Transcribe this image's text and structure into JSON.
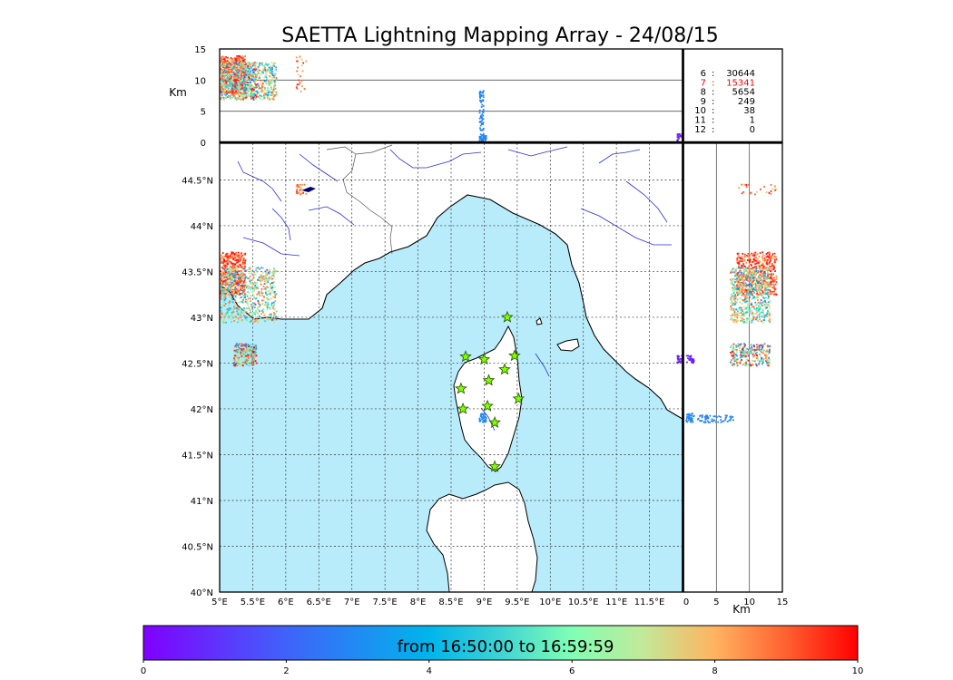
{
  "title": "SAETTA Lightning Mapping Array - 24/08/15",
  "colors": {
    "sea": "#b8ecfb",
    "coast": "#000000",
    "river": "#2b2bd8",
    "border": "#555555",
    "station_fill": "#7fff00",
    "station_stroke": "#2f5d00",
    "highlight": "#ff0000"
  },
  "time_range_label": "from 16:50:00 to 16:59:59",
  "altitude_unit": "Km",
  "station_counts": [
    {
      "label": "6",
      "count": "30644",
      "highlight": false
    },
    {
      "label": "7",
      "count": "15341",
      "highlight": true
    },
    {
      "label": "8",
      "count": "5654",
      "highlight": false
    },
    {
      "label": "9",
      "count": "249",
      "highlight": false
    },
    {
      "label": "10",
      "count": "38",
      "highlight": false
    },
    {
      "label": "11",
      "count": "1",
      "highlight": false
    },
    {
      "label": "12",
      "count": "0",
      "highlight": false
    }
  ],
  "chart_data": [
    {
      "type": "scatter",
      "panel": "map",
      "xlim": [
        5.0,
        12.0
      ],
      "ylim": [
        40.0,
        44.9
      ],
      "x_ticks": [
        "5°E",
        "5.5°E",
        "6°E",
        "6.5°E",
        "7°E",
        "7.5°E",
        "8°E",
        "8.5°E",
        "9°E",
        "9.5°E",
        "10°E",
        "10.5°E",
        "11°E",
        "11.5°E"
      ],
      "y_ticks": [
        "40°N",
        "40.5°N",
        "41°N",
        "41.5°N",
        "42°N",
        "42.5°N",
        "43°N",
        "43.5°N",
        "44°N",
        "44.5°N"
      ],
      "grid": true,
      "stations": [
        {
          "lon": 9.35,
          "lat": 43.0
        },
        {
          "lon": 8.72,
          "lat": 42.57
        },
        {
          "lon": 9.0,
          "lat": 42.54
        },
        {
          "lon": 9.46,
          "lat": 42.58
        },
        {
          "lon": 9.31,
          "lat": 42.43
        },
        {
          "lon": 9.07,
          "lat": 42.31
        },
        {
          "lon": 8.65,
          "lat": 42.22
        },
        {
          "lon": 9.52,
          "lat": 42.11
        },
        {
          "lon": 9.05,
          "lat": 42.03
        },
        {
          "lon": 8.68,
          "lat": 42.0
        },
        {
          "lon": 9.16,
          "lat": 41.85
        },
        {
          "lon": 9.16,
          "lat": 41.37
        }
      ],
      "sources": [
        {
          "lon_min": 5.0,
          "lon_max": 5.38,
          "lat_min": 43.25,
          "lat_max": 43.72,
          "time_min": 7.5,
          "time_max": 10,
          "count": 480
        },
        {
          "lon_min": 5.0,
          "lon_max": 5.85,
          "lat_min": 42.95,
          "lat_max": 43.55,
          "time_min": 2,
          "time_max": 9,
          "count": 620
        },
        {
          "lon_min": 5.2,
          "lon_max": 5.55,
          "lat_min": 42.48,
          "lat_max": 42.72,
          "time_min": 1,
          "time_max": 10,
          "count": 260
        },
        {
          "lon_min": 6.15,
          "lon_max": 6.3,
          "lat_min": 44.35,
          "lat_max": 44.46,
          "time_min": 7,
          "time_max": 10,
          "count": 25
        },
        {
          "lon_min": 8.92,
          "lon_max": 9.02,
          "lat_min": 41.86,
          "lat_max": 41.96,
          "time_min": 2.5,
          "time_max": 3.2,
          "count": 40
        },
        {
          "lon_min": 11.9,
          "lon_max": 12.0,
          "lat_min": 42.51,
          "lat_max": 42.59,
          "time_min": 0.3,
          "time_max": 0.8,
          "count": 30
        }
      ]
    },
    {
      "type": "scatter",
      "panel": "altitude-vs-longitude",
      "xlim": [
        5.0,
        12.0
      ],
      "ylim": [
        0,
        15
      ],
      "ylabel": "Km",
      "y_ticks": [
        "0",
        "5",
        "10",
        "15"
      ],
      "gridlines_y": [
        5,
        10
      ]
    },
    {
      "type": "scatter",
      "panel": "latitude-vs-altitude",
      "xlim": [
        0,
        15
      ],
      "ylim": [
        40.0,
        44.9
      ],
      "xlabel": "Km",
      "x_ticks": [
        "0",
        "5",
        "10",
        "15"
      ],
      "gridlines_x": [
        5,
        10
      ]
    },
    {
      "type": "colorbar",
      "colormap": "rainbow",
      "range": [
        0,
        10
      ],
      "ticks": [
        "0",
        "2",
        "4",
        "6",
        "8",
        "10"
      ]
    }
  ]
}
